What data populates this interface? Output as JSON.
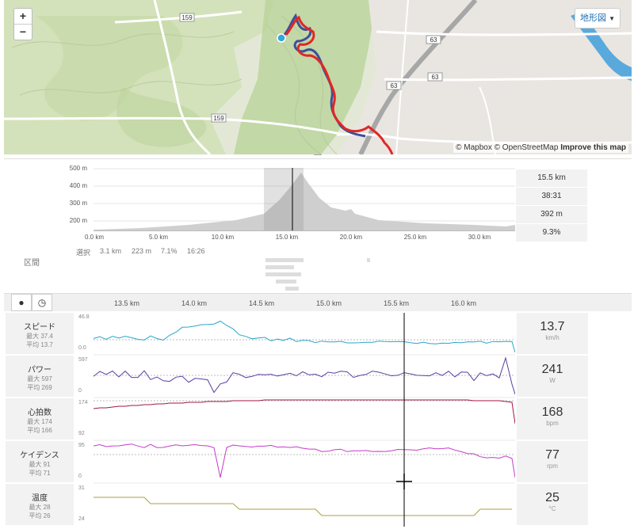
{
  "map": {
    "zoom_in": "+",
    "zoom_out": "−",
    "terrain_button": "地形図",
    "attribution_mapbox": "© Mapbox",
    "attribution_osm": "© OpenStreetMap",
    "attribution_improve": "Improve this map",
    "road_labels": [
      "159",
      "159",
      "63",
      "63",
      "63"
    ]
  },
  "elevation": {
    "y_ticks": [
      "500 m",
      "400 m",
      "300 m",
      "200 m"
    ],
    "x_ticks": [
      "0.0 km",
      "5.0 km",
      "10.0 km",
      "15.0 km",
      "20.0 km",
      "25.0 km",
      "30.0 km"
    ],
    "stats": [
      "15.5 km",
      "38:31",
      "392 m",
      "9.3%"
    ],
    "selection": {
      "label": "選択",
      "distance": "3.1 km",
      "elevation": "223 m",
      "grade": "7.1%",
      "time": "16:26"
    },
    "section_label": "区間"
  },
  "analysis": {
    "km_labels": [
      "13.5 km",
      "14.0 km",
      "14.5 km",
      "15.0 km",
      "15.5 km",
      "16.0 km"
    ],
    "rows": [
      {
        "title": "スピード",
        "max": "最大 37.4",
        "avg": "平均 13.7",
        "ytop": "46.8",
        "ybot": "0.0",
        "value": "13.7",
        "unit": "km/h"
      },
      {
        "title": "パワー",
        "max": "最大 597",
        "avg": "平均 269",
        "ytop": "597",
        "ybot": "0",
        "value": "241",
        "unit": "W"
      },
      {
        "title": "心拍数",
        "max": "最大 174",
        "avg": "平均 166",
        "ytop": "174",
        "ybot": "92",
        "value": "168",
        "unit": "bpm"
      },
      {
        "title": "ケイデンス",
        "max": "最大 91",
        "avg": "平均 71",
        "ytop": "95",
        "ybot": "0",
        "value": "77",
        "unit": "rpm"
      },
      {
        "title": "温度",
        "max": "最大 28",
        "avg": "平均 26",
        "ytop": "31",
        "ybot": "24",
        "value": "25",
        "unit": "°C"
      }
    ]
  },
  "colors": {
    "speed": "#2aa6c9",
    "power": "#5b3fa0",
    "heart_rate": "#a0164a",
    "cadence": "#c43cc8",
    "temperature": "#a8a23a"
  }
}
